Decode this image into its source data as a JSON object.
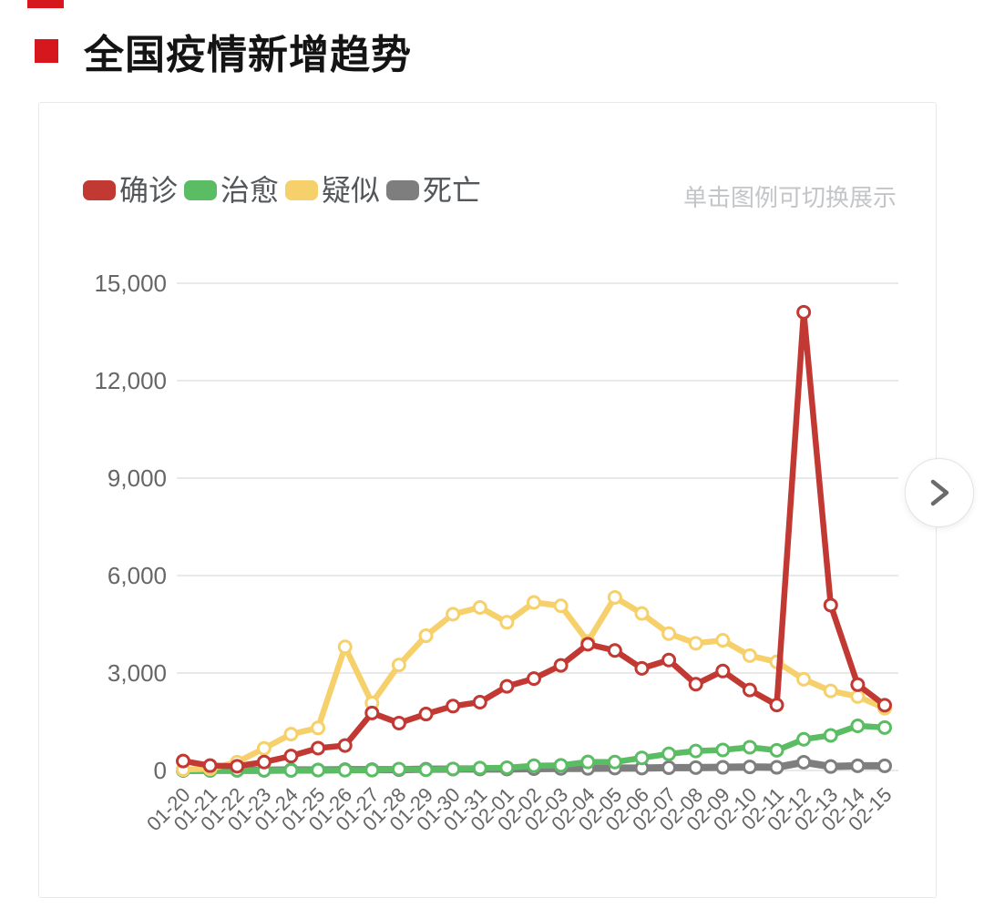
{
  "page": {
    "title": "全国疫情新增趋势",
    "legend_hint": "单击图例可切换展示"
  },
  "colors": {
    "title_bullet": "#d7171e",
    "grid_line": "#e2e2e2",
    "axis_label": "#666666",
    "hint_text": "#c3c5c8",
    "legend_text": "#54575a"
  },
  "carousel": {
    "next_icon": "chevron-right"
  },
  "chart_data": {
    "type": "line",
    "title": "全国疫情新增趋势",
    "x": [
      "01-20",
      "01-21",
      "01-22",
      "01-23",
      "01-24",
      "01-25",
      "01-26",
      "01-27",
      "01-28",
      "01-29",
      "01-30",
      "01-31",
      "02-01",
      "02-02",
      "02-03",
      "02-04",
      "02-05",
      "02-06",
      "02-07",
      "02-08",
      "02-09",
      "02-10",
      "02-11",
      "02-12",
      "02-13",
      "02-14",
      "02-15"
    ],
    "series": [
      {
        "key": "confirmed",
        "name": "确诊",
        "color": "#c23832",
        "values": [
          291,
          149,
          131,
          259,
          444,
          688,
          769,
          1771,
          1459,
          1737,
          1982,
          2102,
          2590,
          2829,
          3235,
          3887,
          3694,
          3143,
          3399,
          2656,
          3062,
          2478,
          2015,
          14108,
          5090,
          2641,
          2009
        ]
      },
      {
        "key": "cured",
        "name": "治愈",
        "color": "#5bbd63",
        "values": [
          0,
          0,
          3,
          6,
          2,
          11,
          9,
          12,
          43,
          21,
          47,
          72,
          85,
          147,
          157,
          262,
          260,
          387,
          510,
          600,
          632,
          716,
          620,
          960,
          1081,
          1373,
          1323
        ]
      },
      {
        "key": "suspected",
        "name": "疑似",
        "color": "#f6d06a",
        "values": [
          27,
          53,
          257,
          680,
          1118,
          1309,
          3806,
          2077,
          3248,
          4148,
          4812,
          5019,
          4562,
          5173,
          5072,
          3971,
          5328,
          4833,
          4214,
          3916,
          4008,
          3536,
          3342,
          2807,
          2450,
          2277,
          1918
        ]
      },
      {
        "key": "deaths",
        "name": "死亡",
        "color": "#7e7e7e",
        "values": [
          3,
          8,
          8,
          8,
          16,
          15,
          24,
          26,
          26,
          38,
          43,
          46,
          45,
          57,
          64,
          65,
          73,
          73,
          86,
          89,
          97,
          108,
          97,
          254,
          121,
          143,
          142
        ]
      }
    ],
    "z_order": [
      "deaths",
      "cured",
      "suspected",
      "confirmed"
    ],
    "ylim": [
      0,
      15000
    ],
    "yticks": [
      0,
      3000,
      6000,
      9000,
      12000,
      15000
    ],
    "ytick_labels": [
      "0",
      "3,000",
      "6,000",
      "9,000",
      "12,000",
      "15,000"
    ],
    "grid": true,
    "marker": "hollow-circle",
    "legend_position": "top-left",
    "legend_hint": "单击图例可切换展示"
  }
}
